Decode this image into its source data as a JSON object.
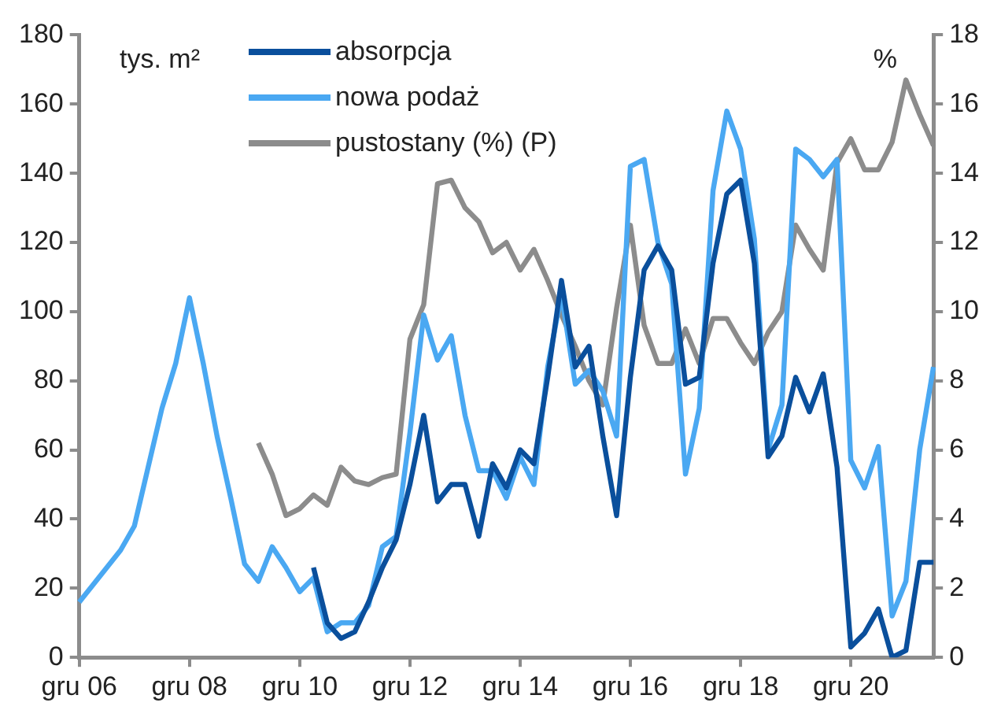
{
  "chart_data": {
    "type": "line",
    "ylabel": "tys. m²",
    "y2label": "%",
    "categories": [
      "gru 06",
      null,
      null,
      null,
      null,
      null,
      null,
      null,
      "gru 08",
      null,
      null,
      null,
      null,
      null,
      null,
      null,
      "gru 10",
      null,
      null,
      null,
      null,
      null,
      null,
      null,
      "gru 12",
      null,
      null,
      null,
      null,
      null,
      null,
      null,
      "gru 14",
      null,
      null,
      null,
      null,
      null,
      null,
      null,
      "gru 16",
      null,
      null,
      null,
      null,
      null,
      null,
      null,
      "gru 18",
      null,
      null,
      null,
      null,
      null,
      null,
      null,
      "gru 20",
      null,
      null,
      null,
      null,
      null,
      null
    ],
    "series": [
      {
        "name": "absorpcja",
        "color": "#0a4f9c",
        "values": [
          null,
          null,
          null,
          null,
          null,
          null,
          null,
          null,
          null,
          null,
          null,
          null,
          null,
          null,
          null,
          null,
          null,
          26,
          10,
          5.5,
          7.4,
          16,
          26,
          34,
          50,
          70,
          45,
          50,
          50,
          35,
          56,
          49,
          60,
          56,
          81,
          109,
          84,
          90,
          64,
          41,
          81,
          112,
          119,
          112,
          79,
          81,
          114,
          134,
          138,
          114,
          58,
          64,
          81,
          71,
          82,
          55,
          3,
          7,
          14,
          0,
          2,
          27.5,
          27.5
        ]
      },
      {
        "name": "nowa podaż",
        "color": "#4aa8f2",
        "values": [
          16,
          21,
          26,
          31,
          38,
          55,
          72,
          85,
          104,
          85,
          64,
          46,
          27,
          22,
          32,
          26,
          19,
          23,
          7.4,
          10,
          10,
          15,
          32,
          35,
          65,
          99,
          86,
          93,
          70,
          54,
          54,
          46,
          58,
          50,
          84,
          105,
          79,
          83,
          77,
          64,
          142,
          144,
          120,
          108,
          53,
          72,
          135,
          158,
          147,
          121,
          60,
          73,
          147,
          144,
          139,
          144,
          57,
          49,
          61,
          12,
          22,
          60,
          84
        ]
      },
      {
        "name": "pustostany (%) (P)",
        "color": "#8c8c8c",
        "axis": "y2",
        "values": [
          null,
          null,
          null,
          null,
          null,
          null,
          null,
          null,
          null,
          null,
          null,
          null,
          null,
          6.2,
          5.3,
          4.1,
          4.3,
          4.7,
          4.4,
          5.5,
          5.1,
          5.0,
          5.2,
          5.3,
          9.2,
          10.2,
          13.7,
          13.8,
          13.0,
          12.6,
          11.7,
          12.0,
          11.2,
          11.8,
          10.9,
          9.9,
          9.0,
          8.0,
          7.3,
          10.1,
          12.5,
          9.6,
          8.5,
          8.5,
          9.5,
          8.5,
          9.8,
          9.8,
          9.1,
          8.5,
          9.4,
          10.0,
          12.5,
          11.8,
          11.2,
          14.3,
          15.0,
          14.1,
          14.1,
          14.9,
          16.7,
          15.7,
          14.8
        ]
      }
    ],
    "ylim": [
      0,
      180
    ],
    "yticks": [
      0,
      20,
      40,
      60,
      80,
      100,
      120,
      140,
      160,
      180
    ],
    "y2lim": [
      0,
      18
    ],
    "y2ticks": [
      0,
      2,
      4,
      6,
      8,
      10,
      12,
      14,
      16,
      18
    ],
    "grid": false,
    "legend": "top left",
    "marker": "none",
    "line_style": "solid"
  }
}
